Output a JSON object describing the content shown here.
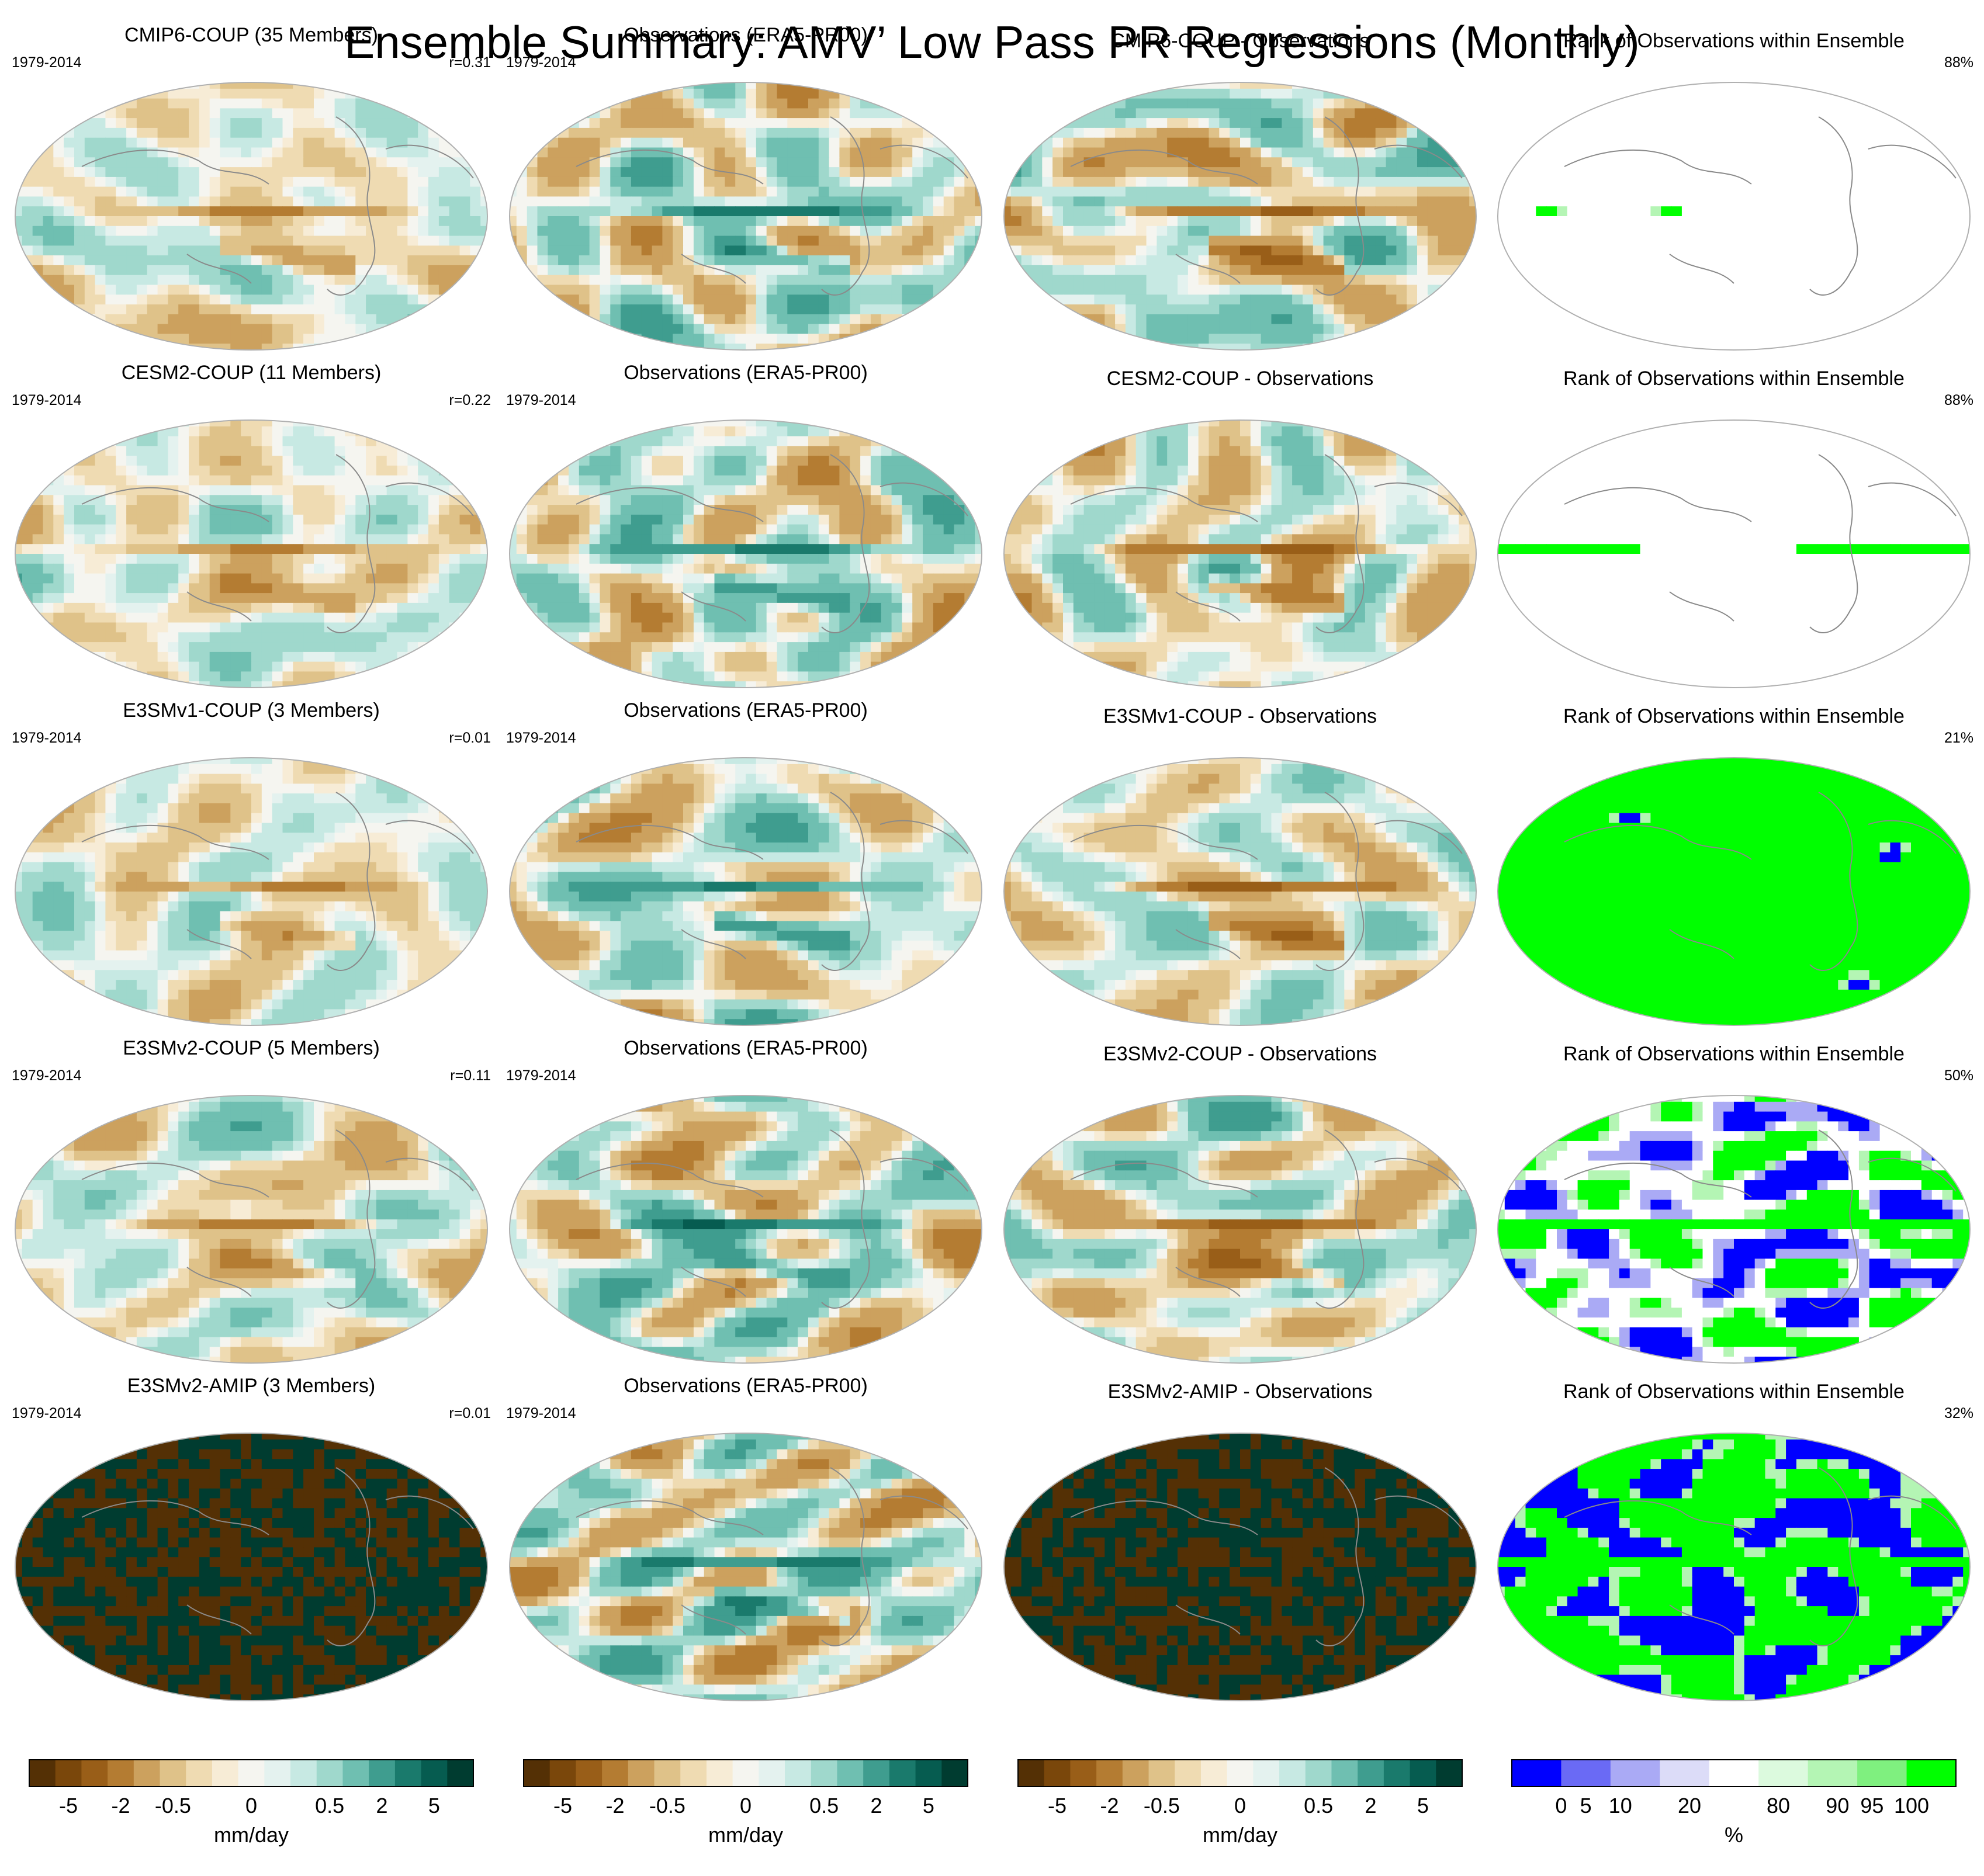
{
  "title": "Ensemble Summary: AMV’ Low Pass PR Regressions (Monthly)",
  "chart_data": {
    "type": "heatmap",
    "description_of_grid": "5 rows x 4 columns of global map panels",
    "period_label": "1979-2014",
    "rows": [
      {
        "model": {
          "title": "CMIP6-COUP (35 Members)",
          "corr": "r=0.31",
          "style": "weak"
        },
        "obs": {
          "title": "Observations (ERA5-PR00)"
        },
        "diff": {
          "title": "CMIP6-COUP - Observations",
          "style": "diff"
        },
        "rank": {
          "title": "Rank of Observations within Ensemble",
          "pct": "88%",
          "fill_level": 0.15
        }
      },
      {
        "model": {
          "title": "CESM2-COUP (11 Members)",
          "corr": "r=0.22",
          "style": "weak"
        },
        "obs": {
          "title": "Observations (ERA5-PR00)"
        },
        "diff": {
          "title": "CESM2-COUP - Observations",
          "style": "diff"
        },
        "rank": {
          "title": "Rank of Observations within Ensemble",
          "pct": "88%",
          "fill_level": 0.3
        }
      },
      {
        "model": {
          "title": "E3SMv1-COUP (3 Members)",
          "corr": "r=0.01",
          "style": "weak"
        },
        "obs": {
          "title": "Observations (ERA5-PR00)"
        },
        "diff": {
          "title": "E3SMv1-COUP - Observations",
          "style": "diff"
        },
        "rank": {
          "title": "Rank of Observations within Ensemble",
          "pct": "21%",
          "fill_level": 0.92
        }
      },
      {
        "model": {
          "title": "E3SMv2-COUP (5 Members)",
          "corr": "r=0.11",
          "style": "weak"
        },
        "obs": {
          "title": "Observations (ERA5-PR00)"
        },
        "diff": {
          "title": "E3SMv2-COUP - Observations",
          "style": "diff"
        },
        "rank": {
          "title": "Rank of Observations within Ensemble",
          "pct": "50%",
          "fill_level": 0.62
        }
      },
      {
        "model": {
          "title": "E3SMv2-AMIP (3 Members)",
          "corr": "r=0.01",
          "style": "saturated"
        },
        "obs": {
          "title": "Observations (ERA5-PR00)"
        },
        "diff": {
          "title": "E3SMv2-AMIP - Observations",
          "style": "saturated"
        },
        "rank": {
          "title": "Rank of Observations within Ensemble",
          "pct": "32%",
          "fill_level": 0.72
        }
      }
    ],
    "precip_colorbar": {
      "unit": "mm/day",
      "tick_labels": [
        "-5",
        "-2",
        "-0.5",
        "0",
        "0.5",
        "2",
        "5"
      ],
      "colors": [
        "#543005",
        "#7a470b",
        "#995e18",
        "#b47c32",
        "#cca15e",
        "#dfc289",
        "#efdbb2",
        "#f7ecd6",
        "#f5f5f0",
        "#e4f2ef",
        "#c7e9e3",
        "#9fd8cc",
        "#6fbfb1",
        "#3f9d8f",
        "#1a7a6c",
        "#065c50",
        "#003c30"
      ]
    },
    "rank_colorbar": {
      "unit": "%",
      "tick_labels": [
        "0",
        "5",
        "10",
        "20",
        "80",
        "90",
        "95",
        "100"
      ],
      "colors": [
        "#0000ff",
        "#6a6af5",
        "#aaaaf5",
        "#dcdcf8",
        "#ffffff",
        "#dcfade",
        "#b4f5b4",
        "#7ff07f",
        "#00ff00"
      ]
    }
  }
}
